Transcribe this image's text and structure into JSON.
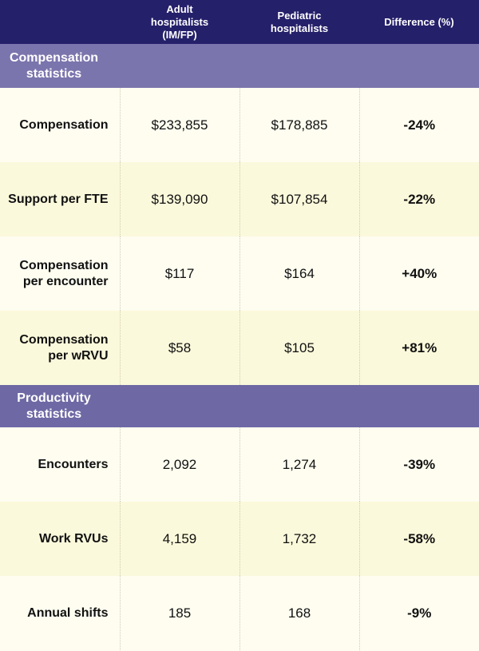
{
  "headers": [
    "",
    "Adult hospitalists (IM/FP)",
    "Pediatric hospitalists",
    "Difference (%)"
  ],
  "sections": [
    {
      "title": "Compensation statistics",
      "rows": [
        {
          "label": "Compensation",
          "adult": "$233,855",
          "pediatric": "$178,885",
          "difference": "-24%"
        },
        {
          "label": "Support per FTE",
          "adult": "$139,090",
          "pediatric": "$107,854",
          "difference": "-22%"
        },
        {
          "label": "Compensation per encounter",
          "adult": "$117",
          "pediatric": "$164",
          "difference": "+40%"
        },
        {
          "label": "Compensation per wRVU",
          "adult": "$58",
          "pediatric": "$105",
          "difference": "+81%"
        }
      ]
    },
    {
      "title": "Productivity statistics",
      "rows": [
        {
          "label": "Encounters",
          "adult": "2,092",
          "pediatric": "1,274",
          "difference": "-39%"
        },
        {
          "label": "Work RVUs",
          "adult": "4,159",
          "pediatric": "1,732",
          "difference": "-58%"
        },
        {
          "label": "Annual shifts",
          "adult": "185",
          "pediatric": "168",
          "difference": "-9%"
        }
      ]
    }
  ]
}
